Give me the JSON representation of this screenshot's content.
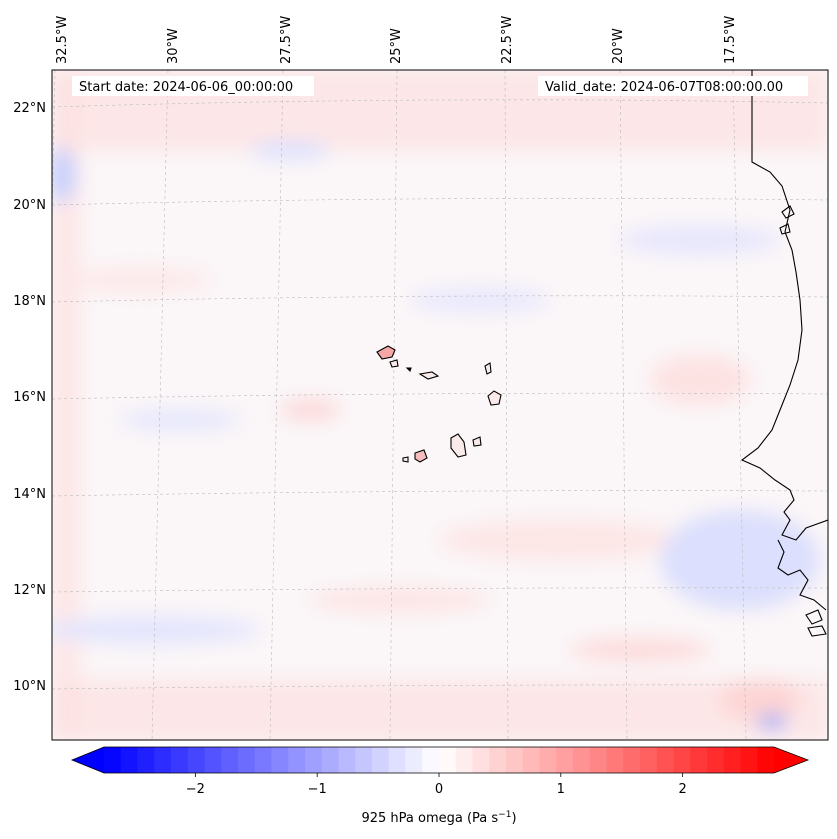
{
  "map": {
    "start_date_label": "Start date: 2024-06-06_00:00:00",
    "valid_date_label": "Valid_date: 2024-06-07T08:00:00.00",
    "lon_labels": [
      "32.5°W",
      "30°W",
      "27.5°W",
      "25°W",
      "22.5°W",
      "20°W",
      "17.5°W"
    ],
    "lat_labels": [
      "22°N",
      "20°N",
      "18°N",
      "16°N",
      "14°N",
      "12°N",
      "10°N"
    ],
    "coastline_color": "#000000",
    "gridline_color": "#bbbbbb"
  },
  "colorbar": {
    "label_main": "925 hPa omega (Pa s",
    "label_exp": "−1",
    "label_close": ")",
    "ticks": [
      "−2",
      "−1",
      "0",
      "1",
      "2"
    ],
    "tick_values": [
      -2,
      -1,
      0,
      1,
      2
    ],
    "range": [
      -2.75,
      2.75
    ],
    "cmap": "bwr",
    "color_min": "#0000ff",
    "color_mid": "#ffffff",
    "color_max": "#ff0000",
    "extend": "both"
  }
}
